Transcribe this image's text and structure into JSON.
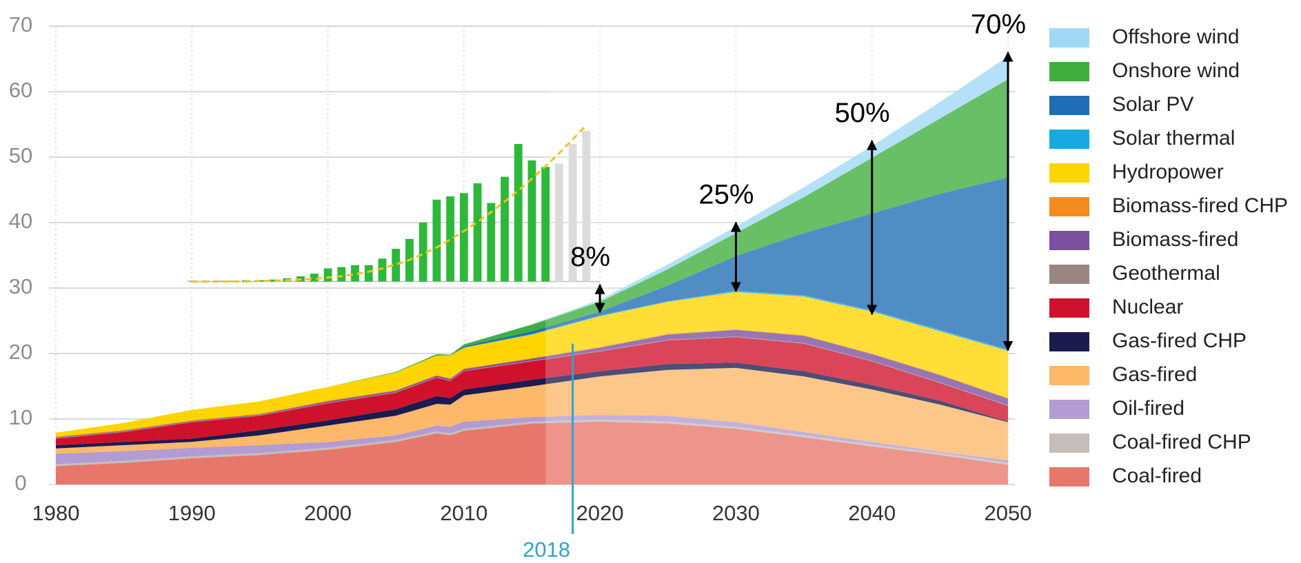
{
  "chart_data": [
    {
      "type": "stacked_area",
      "x": [
        1980,
        1985,
        1990,
        1995,
        2000,
        2005,
        2008,
        2009,
        2010,
        2015,
        2020,
        2025,
        2030,
        2035,
        2040,
        2045,
        2050
      ],
      "xlim": [
        1980,
        2050
      ],
      "xticks": [
        1980,
        1990,
        2000,
        2010,
        2020,
        2030,
        2040,
        2050
      ],
      "ylim": [
        0,
        70
      ],
      "yticks": [
        0,
        10,
        20,
        30,
        40,
        50,
        60,
        70
      ],
      "grid": true,
      "legend": "right",
      "shaded_from": 2016,
      "series": [
        {
          "name": "Coal-fired",
          "color": "#e8776b",
          "values": [
            2.8,
            3.3,
            4.0,
            4.5,
            5.3,
            6.5,
            7.8,
            7.5,
            8.2,
            9.3,
            9.6,
            9.3,
            8.5,
            7.2,
            5.8,
            4.5,
            3.0
          ]
        },
        {
          "name": "Coal-fired CHP",
          "color": "#c4bdb9",
          "values": [
            0.3,
            0.3,
            0.3,
            0.3,
            0.3,
            0.3,
            0.3,
            0.3,
            0.3,
            0.3,
            0.3,
            0.3,
            0.3,
            0.3,
            0.3,
            0.3,
            0.3
          ]
        },
        {
          "name": "Oil-fired",
          "color": "#b39bd3",
          "values": [
            1.6,
            1.5,
            1.3,
            1.2,
            0.9,
            0.7,
            0.9,
            1.0,
            1.1,
            0.7,
            0.7,
            0.9,
            0.7,
            0.5,
            0.4,
            0.2,
            0.4
          ]
        },
        {
          "name": "Gas-fired",
          "color": "#fdb86a",
          "values": [
            0.8,
            0.9,
            0.9,
            1.5,
            2.5,
            3.0,
            3.3,
            3.4,
            4.0,
            4.7,
            5.9,
            7.0,
            8.3,
            8.5,
            8.0,
            7.2,
            5.8
          ]
        },
        {
          "name": "Gas-fired CHP",
          "color": "#1c1b4f",
          "values": [
            0.5,
            0.5,
            0.5,
            0.8,
            0.8,
            1.0,
            1.2,
            1.0,
            0.9,
            1.0,
            0.8,
            0.9,
            0.8,
            0.8,
            0.7,
            0.6,
            0.1
          ]
        },
        {
          "name": "Nuclear",
          "color": "#d0112b",
          "values": [
            1.0,
            1.5,
            2.5,
            2.2,
            2.6,
            2.5,
            2.8,
            2.6,
            2.8,
            2.8,
            3.0,
            3.6,
            3.9,
            4.2,
            3.6,
            2.7,
            2.4
          ]
        },
        {
          "name": "Geothermal",
          "color": "#9a8582",
          "values": [
            0.1,
            0.1,
            0.1,
            0.1,
            0.1,
            0.1,
            0.1,
            0.1,
            0.1,
            0.1,
            0.1,
            0.1,
            0.1,
            0.1,
            0.1,
            0.1,
            0.1
          ]
        },
        {
          "name": "Biomass-fired",
          "color": "#7b4fa0",
          "values": [
            0.1,
            0.1,
            0.1,
            0.1,
            0.2,
            0.2,
            0.2,
            0.2,
            0.2,
            0.3,
            0.5,
            0.8,
            1.0,
            1.1,
            1.0,
            1.1,
            1.0
          ]
        },
        {
          "name": "Biomass-fired CHP",
          "color": "#f58a1f",
          "values": [
            0.1,
            0.1,
            0.1,
            0.1,
            0.1,
            0.1,
            0.1,
            0.1,
            0.1,
            0.1,
            0.1,
            0.1,
            0.1,
            0.1,
            0.1,
            0.1,
            0.1
          ]
        },
        {
          "name": "Hydropower",
          "color": "#ffd500",
          "values": [
            0.6,
            1.1,
            1.6,
            1.9,
            2.1,
            2.7,
            3.0,
            3.5,
            3.2,
            3.6,
            4.7,
            4.9,
            5.7,
            5.9,
            6.4,
            6.6,
            7.2
          ]
        },
        {
          "name": "Solar thermal",
          "color": "#19a9e1",
          "values": [
            0,
            0,
            0,
            0,
            0,
            0,
            0,
            0,
            0,
            0.1,
            0.1,
            0.1,
            0.2,
            0.2,
            0.2,
            0.2,
            0.2
          ]
        },
        {
          "name": "Solar PV",
          "color": "#1f6db5",
          "values": [
            0,
            0,
            0,
            0,
            0,
            0,
            0,
            0,
            0.2,
            0.4,
            0.6,
            2.4,
            5.3,
            9.5,
            14.8,
            20.8,
            26.3
          ]
        },
        {
          "name": "Onshore wind",
          "color": "#3fae3c",
          "values": [
            0,
            0,
            0,
            0,
            0,
            0.1,
            0.2,
            0.1,
            0.3,
            1.0,
            1.5,
            2.5,
            3.5,
            5.5,
            8.5,
            11.5,
            15.0
          ]
        },
        {
          "name": "Offshore wind",
          "color": "#9fd9f5",
          "values": [
            0,
            0,
            0,
            0,
            0,
            0,
            0,
            0,
            0,
            0.1,
            0.3,
            0.7,
            1.0,
            1.5,
            1.8,
            2.5,
            3.5
          ]
        }
      ],
      "annotations": [
        {
          "text": "8%",
          "x": 2020,
          "y_from": 26.3,
          "y_to": 30.5
        },
        {
          "text": "25%",
          "x": 2030,
          "y_from": 29.5,
          "y_to": 40
        },
        {
          "text": "50%",
          "x": 2040,
          "y_from": 26,
          "y_to": 52.5
        },
        {
          "text": "70%",
          "x": 2050,
          "y_from": 20.5,
          "y_to": 66
        }
      ],
      "marker": {
        "value": 2018,
        "color": "#2fa3cf",
        "top": 21.5
      }
    },
    {
      "type": "inset_bar",
      "ylim": [
        0,
        25
      ],
      "series": [
        {
          "color": "#2db83a",
          "values": [
            0.1,
            0.1,
            0.1,
            0.1,
            0.2,
            0.2,
            0.3,
            0.5,
            0.8,
            1.2,
            2.0,
            2.2,
            2.5,
            2.5,
            3.5,
            5.0,
            6.5,
            9.0,
            12.5,
            13.0,
            13.5,
            15.0,
            12.0,
            16.0,
            21.0,
            18.5,
            17.5,
            null,
            null,
            null
          ]
        },
        {
          "color": "#dcdcdc",
          "values": [
            null,
            null,
            null,
            null,
            null,
            null,
            null,
            null,
            null,
            null,
            null,
            null,
            null,
            null,
            null,
            null,
            null,
            null,
            null,
            null,
            null,
            null,
            null,
            null,
            null,
            null,
            null,
            18,
            21,
            23
          ]
        },
        {
          "type": "line",
          "color": "#f2c21b",
          "dashed": true,
          "values": [
            0,
            0,
            0,
            0,
            0,
            0.1,
            0.1,
            0.2,
            0.3,
            0.4,
            0.6,
            0.8,
            1.1,
            1.5,
            2.0,
            2.6,
            3.3,
            4.2,
            5.2,
            6.4,
            7.7,
            9.1,
            10.6,
            12.2,
            13.9,
            15.7,
            17.6,
            19.6,
            21.7,
            23.9
          ]
        }
      ]
    }
  ]
}
